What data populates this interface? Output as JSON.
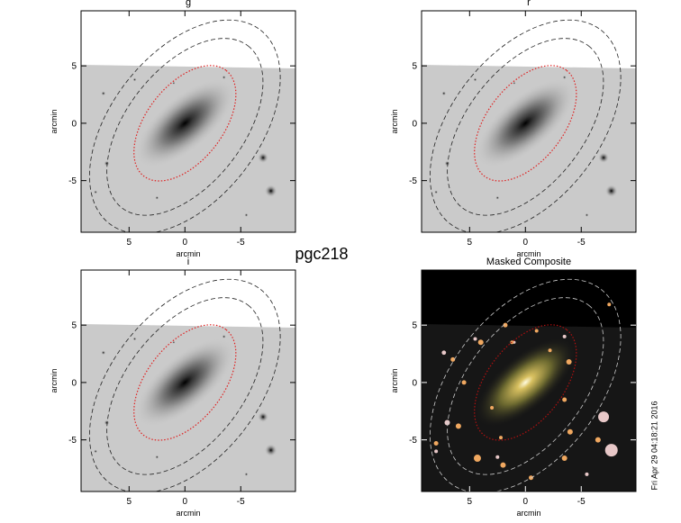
{
  "title": "pgc218",
  "timestamp": "Fri Apr 29 04:18:21 2016",
  "chart_data": [
    {
      "type": "image",
      "title": "g",
      "xlabel": "arcmin",
      "ylabel": "arcmin",
      "colormap": "grayscale",
      "xlim": [
        9.3,
        -9.9
      ],
      "ylim": [
        -9.5,
        9.8
      ],
      "xticks": [
        5,
        0,
        -5
      ],
      "yticks": [
        5,
        0,
        -5
      ]
    },
    {
      "type": "image",
      "title": "r",
      "xlabel": "arcmin",
      "ylabel": "arcmin",
      "colormap": "grayscale",
      "xlim": [
        9.3,
        -9.9
      ],
      "ylim": [
        -9.5,
        9.8
      ],
      "xticks": [
        5,
        0,
        -5
      ],
      "yticks": [
        5,
        0,
        -5
      ]
    },
    {
      "type": "image",
      "title": "i",
      "xlabel": "arcmin",
      "ylabel": "arcmin",
      "colormap": "grayscale",
      "xlim": [
        9.3,
        -9.9
      ],
      "ylim": [
        -9.5,
        9.8
      ],
      "xticks": [
        5,
        0,
        -5
      ],
      "yticks": [
        5,
        0,
        -5
      ]
    },
    {
      "type": "image",
      "title": "Masked Composite",
      "xlabel": "arcmin",
      "ylabel": "arcmin",
      "colormap": "rgb",
      "xlim": [
        9.3,
        -9.9
      ],
      "ylim": [
        -9.5,
        9.8
      ],
      "xticks": [
        5,
        0,
        -5
      ],
      "yticks": [
        5,
        0,
        -5
      ]
    }
  ]
}
